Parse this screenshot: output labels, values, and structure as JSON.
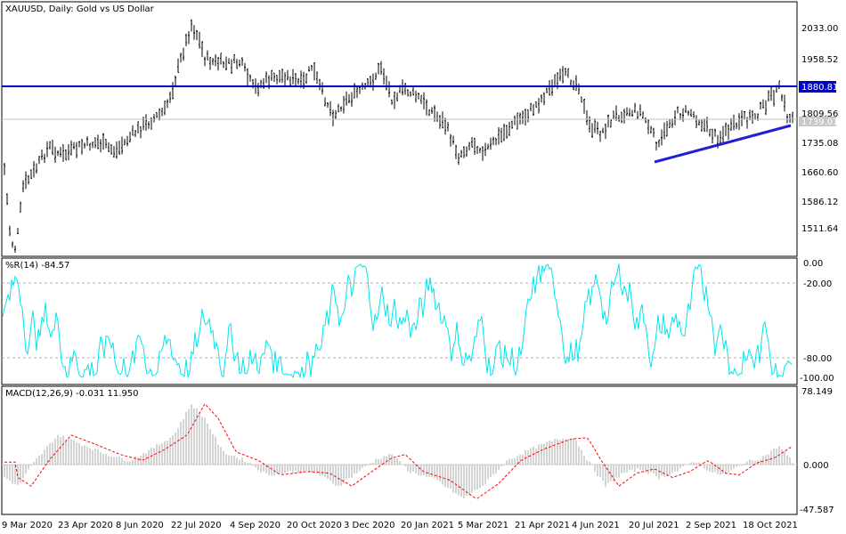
{
  "header": {
    "price_title": "XAUUSD, Daily:  Gold vs US Dollar",
    "wpr_title": "%R(14) -84.57",
    "macd_title": "MACD(12,26,9) -0.031 11.950"
  },
  "colors": {
    "price_bars": "#000000",
    "hline": "#0000cc",
    "trendline": "#1f1fd6",
    "wpr": "#00e5ee",
    "macd_hist": "#a9a9a9",
    "macd_signal": "#ff0000"
  },
  "price_axis": {
    "ticks": [
      "2033.00",
      "1958.52",
      "1880.81",
      "1809.56",
      "1739.01",
      "1735.08",
      "1660.60",
      "1586.12",
      "1511.64"
    ],
    "hline_label": "1880.81",
    "last_label": "1739.01"
  },
  "wpr_axis": {
    "ticks": [
      "0.00",
      "-20.00",
      "-80.00",
      "-100.00"
    ]
  },
  "macd_axis": {
    "ticks": [
      "78.149",
      "0.000",
      "-47.587"
    ]
  },
  "time_axis": {
    "labels": [
      "9 Mar 2020",
      "23 Apr 2020",
      "8 Jun 2020",
      "22 Jul 2020",
      "4 Sep 2020",
      "20 Oct 2020",
      "3 Dec 2020",
      "20 Jan 2021",
      "5 Mar 2021",
      "21 Apr 2021",
      "4 Jun 2021",
      "20 Jul 2021",
      "2 Sep 2021",
      "18 Oct 2021"
    ]
  },
  "chart_data": [
    {
      "type": "line",
      "title": "XAUUSD, Daily:  Gold vs US Dollar",
      "ylim": [
        1460,
        2090
      ],
      "series": [
        {
          "name": "XAUUSD",
          "x": [
            "9 Mar 2020",
            "23 Apr 2020",
            "8 Jun 2020",
            "22 Jul 2020",
            "4 Sep 2020",
            "20 Oct 2020",
            "3 Dec 2020",
            "20 Jan 2021",
            "5 Mar 2021",
            "21 Apr 2021",
            "4 Jun 2021",
            "20 Jul 2021",
            "2 Sep 2021",
            "18 Oct 2021"
          ],
          "values": [
            1650,
            1700,
            1710,
            1860,
            1930,
            1910,
            1830,
            1850,
            1700,
            1780,
            1890,
            1805,
            1805,
            1860
          ]
        }
      ],
      "horizontal_line": 1880.81,
      "last_price": 1739.01
    },
    {
      "type": "line",
      "title": "%R(14) -84.57",
      "ylim": [
        -100,
        0
      ],
      "series": [
        {
          "name": "%R(14)",
          "values": [
            -84.57
          ]
        }
      ]
    },
    {
      "type": "bar",
      "title": "MACD(12,26,9) -0.031 11.950",
      "ylim": [
        -47.587,
        78.149
      ],
      "series": [
        {
          "name": "MACD",
          "values": [
            -0.031
          ]
        },
        {
          "name": "Signal",
          "values": [
            11.95
          ]
        }
      ]
    }
  ]
}
